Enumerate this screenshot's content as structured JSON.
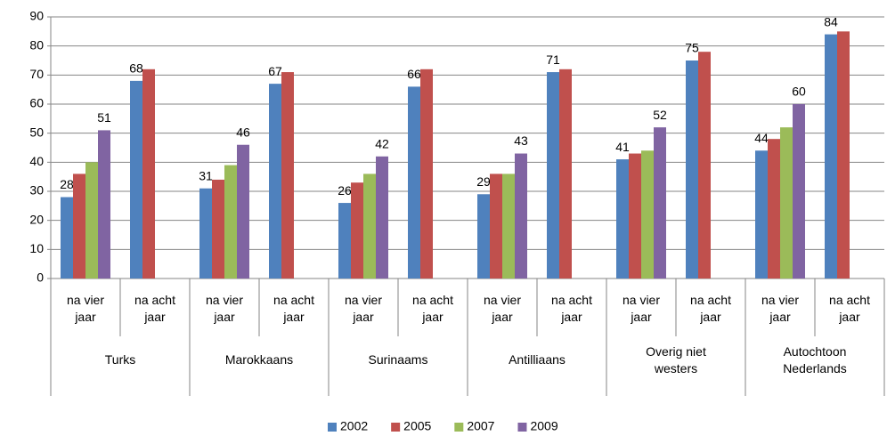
{
  "chart_data": {
    "type": "bar",
    "groups": [
      "Turks",
      "Marokkaans",
      "Surinaams",
      "Antilliaans",
      "Overig niet westers",
      "Autochtoon Nederlands"
    ],
    "categories": [
      "na vier jaar",
      "na acht jaar",
      "na vier jaar",
      "na acht jaar",
      "na vier jaar",
      "na acht jaar",
      "na vier jaar",
      "na acht jaar",
      "na vier jaar",
      "na acht jaar",
      "na vier jaar",
      "na acht jaar"
    ],
    "series": [
      {
        "name": "2002",
        "color": "#4f81bd",
        "values": [
          28,
          68,
          31,
          67,
          26,
          66,
          29,
          71,
          41,
          75,
          44,
          84
        ],
        "value_labels": [
          "28",
          "68",
          "31",
          "67",
          "26",
          "66",
          "29",
          "71",
          "41",
          "75",
          "44",
          "84"
        ]
      },
      {
        "name": "2005",
        "color": "#c0504d",
        "values": [
          36,
          72,
          34,
          71,
          33,
          72,
          36,
          72,
          43,
          78,
          48,
          85
        ]
      },
      {
        "name": "2007",
        "color": "#9bbb59",
        "values": [
          40,
          null,
          39,
          null,
          36,
          null,
          36,
          null,
          44,
          null,
          52,
          null
        ]
      },
      {
        "name": "2009",
        "color": "#8064a2",
        "values": [
          51,
          null,
          46,
          null,
          42,
          null,
          43,
          null,
          52,
          null,
          60,
          null
        ],
        "value_labels": [
          "51",
          null,
          "46",
          null,
          "42",
          null,
          "43",
          null,
          "52",
          null,
          "60",
          null
        ]
      }
    ],
    "ylim": [
      0,
      90
    ],
    "yticks": [
      0,
      10,
      20,
      30,
      40,
      50,
      60,
      70,
      80,
      90
    ],
    "grid": true,
    "legend": "bottom"
  }
}
